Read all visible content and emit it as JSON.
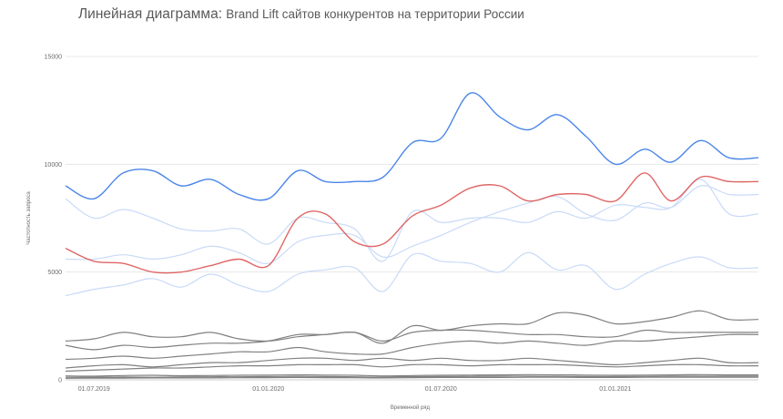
{
  "title_main": "Линейная диаграмма:",
  "title_sub": "Brand Lift сайтов конкурентов на территории России",
  "chart_data": {
    "type": "line",
    "title": "Линейная диаграмма: Brand Lift сайтов конкурентов на территории России",
    "xlabel": "Временной ряд",
    "ylabel": "Частотность запроса",
    "ylim": [
      0,
      15000
    ],
    "yticks": [
      0,
      5000,
      10000,
      15000
    ],
    "xlim": [
      "2019-06-01",
      "2021-06-01"
    ],
    "xticks": [
      "01.07.2019",
      "01.01.2020",
      "01.07.2020",
      "01.01.2021"
    ],
    "xtick_dates": [
      "2019-07-01",
      "2020-01-01",
      "2020-07-01",
      "2021-01-01"
    ],
    "grid": true,
    "x": [
      "2019-06-01",
      "2019-07-01",
      "2019-08-01",
      "2019-09-01",
      "2019-10-01",
      "2019-11-01",
      "2019-12-01",
      "2020-01-01",
      "2020-02-01",
      "2020-03-01",
      "2020-04-01",
      "2020-05-01",
      "2020-06-01",
      "2020-07-01",
      "2020-08-01",
      "2020-09-01",
      "2020-10-01",
      "2020-11-01",
      "2020-12-01",
      "2021-01-01",
      "2021-02-01",
      "2021-03-01",
      "2021-04-01",
      "2021-05-01",
      "2021-06-01"
    ],
    "series": [
      {
        "color": "#4a86e8",
        "width": 1.4,
        "values": [
          9000,
          8400,
          9600,
          9700,
          9000,
          9300,
          8600,
          8400,
          9700,
          9200,
          9200,
          9400,
          11000,
          11200,
          13300,
          12200,
          11600,
          12300,
          11300,
          10000,
          10700,
          10100,
          11100,
          10300,
          10300
        ]
      },
      {
        "color": "#e06666",
        "width": 1.4,
        "values": [
          6100,
          5500,
          5400,
          5000,
          5000,
          5300,
          5600,
          5300,
          7500,
          7700,
          6400,
          6300,
          7600,
          8100,
          8900,
          9000,
          8300,
          8600,
          8600,
          8300,
          9600,
          8300,
          9400,
          9200,
          9200
        ]
      },
      {
        "color": "#c9daf8",
        "width": 1.2,
        "values": [
          8400,
          7500,
          7900,
          7500,
          7000,
          6900,
          7000,
          6300,
          7500,
          7300,
          7000,
          5500,
          7800,
          7300,
          7500,
          7500,
          7300,
          7800,
          7500,
          8100,
          8000,
          8000,
          9300,
          7700,
          7700
        ]
      },
      {
        "color": "#c9daf8",
        "width": 1.2,
        "values": [
          5600,
          5600,
          5800,
          5600,
          5800,
          6200,
          5900,
          5400,
          6400,
          6700,
          6700,
          5700,
          6200,
          6700,
          7300,
          7800,
          8200,
          8500,
          7700,
          7400,
          8200,
          8000,
          9000,
          8600,
          8600
        ]
      },
      {
        "color": "#c9daf8",
        "width": 1.2,
        "values": [
          3900,
          4200,
          4400,
          4700,
          4300,
          4900,
          4400,
          4100,
          4900,
          5100,
          5200,
          4100,
          5800,
          5500,
          5400,
          5000,
          5900,
          5100,
          5300,
          4200,
          4900,
          5400,
          5700,
          5200,
          5200
        ]
      },
      {
        "color": "#808080",
        "width": 1.2,
        "values": [
          1800,
          1900,
          2200,
          2000,
          2000,
          2200,
          1900,
          1800,
          2000,
          2100,
          2200,
          1700,
          2500,
          2300,
          2500,
          2600,
          2600,
          3100,
          3000,
          2600,
          2700,
          2900,
          3200,
          2800,
          2800
        ]
      },
      {
        "color": "#808080",
        "width": 1.2,
        "values": [
          1600,
          1400,
          1600,
          1500,
          1600,
          1700,
          1700,
          1800,
          2100,
          2100,
          2200,
          1800,
          2200,
          2300,
          2300,
          2200,
          2100,
          2100,
          2000,
          2000,
          2300,
          2200,
          2200,
          2200,
          2200
        ]
      },
      {
        "color": "#808080",
        "width": 1.2,
        "values": [
          950,
          1000,
          1100,
          1000,
          1100,
          1200,
          1300,
          1300,
          1500,
          1300,
          1200,
          1200,
          1500,
          1700,
          1800,
          1700,
          1800,
          1700,
          1600,
          1800,
          1800,
          1900,
          2000,
          2100,
          2100
        ]
      },
      {
        "color": "#808080",
        "width": 1.2,
        "values": [
          550,
          650,
          700,
          600,
          700,
          800,
          800,
          900,
          1000,
          1000,
          900,
          1000,
          900,
          1000,
          900,
          900,
          1000,
          900,
          800,
          700,
          800,
          900,
          1000,
          800,
          800
        ]
      },
      {
        "color": "#808080",
        "width": 1.2,
        "values": [
          400,
          450,
          500,
          550,
          550,
          600,
          650,
          650,
          700,
          700,
          700,
          600,
          700,
          700,
          650,
          700,
          700,
          700,
          650,
          600,
          650,
          700,
          700,
          650,
          650
        ]
      },
      {
        "color": "#808080",
        "width": 1.2,
        "values": [
          180,
          170,
          200,
          210,
          190,
          200,
          210,
          220,
          230,
          220,
          210,
          180,
          200,
          210,
          220,
          230,
          240,
          230,
          220,
          210,
          220,
          230,
          240,
          230,
          230
        ]
      },
      {
        "color": "#808080",
        "width": 1.2,
        "values": [
          120,
          120,
          130,
          120,
          130,
          140,
          140,
          150,
          160,
          150,
          140,
          130,
          150,
          150,
          160,
          170,
          170,
          160,
          150,
          150,
          160,
          170,
          170,
          170,
          170
        ]
      },
      {
        "color": "#808080",
        "width": 1.2,
        "values": [
          70,
          80,
          80,
          90,
          90,
          90,
          100,
          100,
          110,
          100,
          100,
          90,
          100,
          110,
          110,
          110,
          120,
          120,
          110,
          110,
          120,
          120,
          120,
          120,
          120
        ]
      }
    ]
  }
}
